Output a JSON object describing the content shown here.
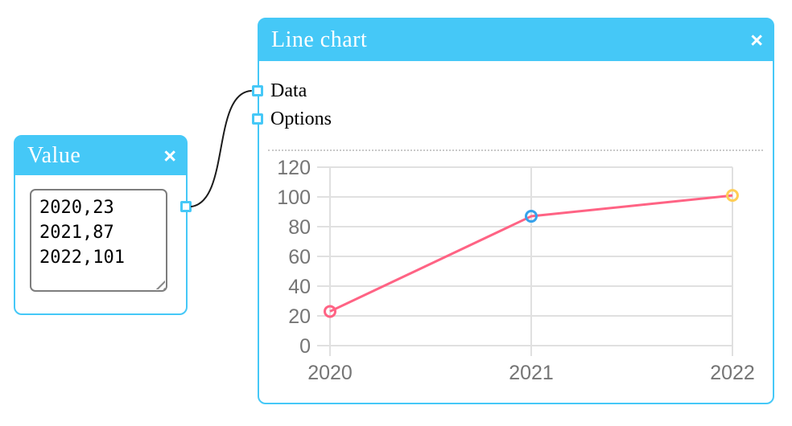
{
  "editor": {
    "background": "#ffffff"
  },
  "theme": {
    "accent_blue": "#45c8f7",
    "grid_color": "#e0e0e0",
    "tick_label_color": "#757575",
    "cable_color": "#1b1b1b",
    "divider_color": "#c9c9c9",
    "textarea_border": "#7d7d7d"
  },
  "value_node": {
    "title": "Value",
    "close_glyph": "×",
    "input_value": "2020,23\n2021,87\n2022,101"
  },
  "chart_node": {
    "title": "Line chart",
    "close_glyph": "×",
    "ports": [
      {
        "label": "Data"
      },
      {
        "label": "Options"
      }
    ]
  },
  "chart_data": {
    "type": "line",
    "categories": [
      "2020",
      "2021",
      "2022"
    ],
    "values": [
      23,
      87,
      101
    ],
    "title": "",
    "xlabel": "",
    "ylabel": "",
    "ylim": [
      0,
      120
    ],
    "y_ticks": [
      0,
      20,
      40,
      60,
      80,
      100,
      120
    ],
    "grid": true,
    "legend": false,
    "line_color": "#ff6384",
    "point_colors": [
      "#ff6384",
      "#36a2eb",
      "#ffce56"
    ]
  }
}
